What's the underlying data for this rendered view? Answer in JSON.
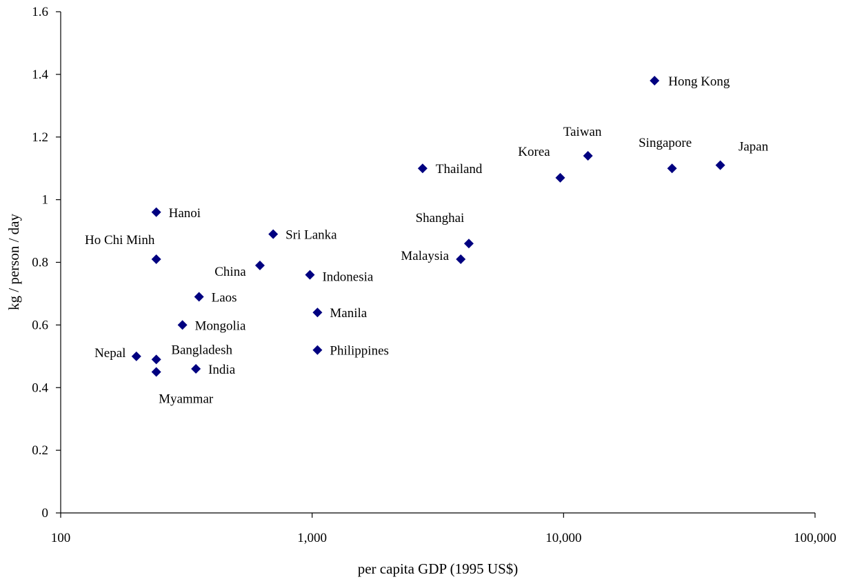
{
  "chart_data": {
    "type": "scatter",
    "xlabel": "per capita GDP  (1995 US$)",
    "ylabel": "kg / person / day",
    "x_scale": "log",
    "xlim": [
      100,
      100000
    ],
    "ylim": [
      0,
      1.6
    ],
    "x_ticks": [
      100,
      1000,
      10000,
      100000
    ],
    "x_tick_labels": [
      "100",
      "1,000",
      "10,000",
      "100,000"
    ],
    "y_ticks": [
      0,
      0.2,
      0.4,
      0.6,
      0.8,
      1,
      1.2,
      1.4,
      1.6
    ],
    "y_tick_labels": [
      "0",
      "0.2",
      "0.4",
      "0.6",
      "0.8",
      "1",
      "1.2",
      "1.4",
      "1.6"
    ],
    "grid": false,
    "legend": false,
    "marker": "diamond",
    "marker_color": "#000080",
    "points": [
      {
        "label": "Hong Kong",
        "x": 23000,
        "y": 1.38
      },
      {
        "label": "Taiwan",
        "x": 12500,
        "y": 1.14
      },
      {
        "label": "Singapore",
        "x": 27000,
        "y": 1.1
      },
      {
        "label": "Japan",
        "x": 42000,
        "y": 1.11
      },
      {
        "label": "Korea",
        "x": 9700,
        "y": 1.07
      },
      {
        "label": "Thailand",
        "x": 2750,
        "y": 1.1
      },
      {
        "label": "Shanghai",
        "x": 4200,
        "y": 0.86
      },
      {
        "label": "Malaysia",
        "x": 3900,
        "y": 0.81
      },
      {
        "label": "Hanoi",
        "x": 240,
        "y": 0.96
      },
      {
        "label": "Ho Chi Minh",
        "x": 240,
        "y": 0.81
      },
      {
        "label": "Sri Lanka",
        "x": 700,
        "y": 0.89
      },
      {
        "label": "China",
        "x": 620,
        "y": 0.79
      },
      {
        "label": "Indonesia",
        "x": 980,
        "y": 0.76
      },
      {
        "label": "Laos",
        "x": 355,
        "y": 0.69
      },
      {
        "label": "Manila",
        "x": 1050,
        "y": 0.64
      },
      {
        "label": "Mongolia",
        "x": 305,
        "y": 0.6
      },
      {
        "label": "Philippines",
        "x": 1050,
        "y": 0.52
      },
      {
        "label": "Nepal",
        "x": 200,
        "y": 0.5
      },
      {
        "label": "Bangladesh",
        "x": 240,
        "y": 0.49
      },
      {
        "label": "India",
        "x": 345,
        "y": 0.46
      },
      {
        "label": "Myammar",
        "x": 240,
        "y": 0.45
      }
    ]
  }
}
